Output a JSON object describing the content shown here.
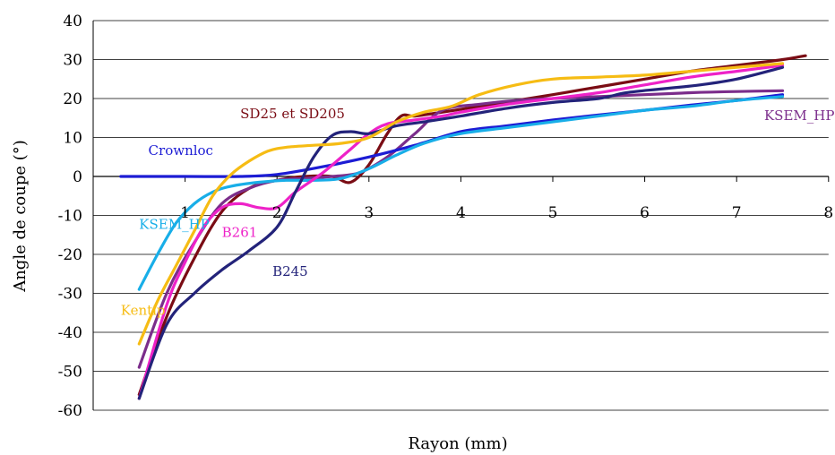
{
  "chart_data": {
    "type": "line",
    "xlabel": "Rayon (mm)",
    "ylabel": "Angle de coupe (°)",
    "xlim": [
      0,
      8
    ],
    "ylim": [
      -60,
      40
    ],
    "xticks": [
      1,
      2,
      3,
      4,
      5,
      6,
      7,
      8
    ],
    "yticks": [
      40,
      30,
      20,
      10,
      0,
      -10,
      -20,
      -30,
      -40,
      -50,
      -60
    ],
    "grid": "horizontal",
    "series": [
      {
        "name": "SD25 et SD205",
        "color": "#7a0c14",
        "points": [
          [
            0.5,
            -56
          ],
          [
            0.8,
            -36
          ],
          [
            1.1,
            -21
          ],
          [
            1.4,
            -9
          ],
          [
            1.7,
            -3
          ],
          [
            2.0,
            -1
          ],
          [
            2.3,
            0
          ],
          [
            2.6,
            0
          ],
          [
            2.8,
            -1.5
          ],
          [
            3.0,
            3
          ],
          [
            3.2,
            11
          ],
          [
            3.35,
            15.5
          ],
          [
            3.5,
            15.5
          ],
          [
            3.8,
            16.5
          ],
          [
            4.2,
            18
          ],
          [
            4.6,
            19.5
          ],
          [
            5.0,
            21
          ],
          [
            5.5,
            23
          ],
          [
            6.0,
            25
          ],
          [
            6.5,
            27
          ],
          [
            7.0,
            28.5
          ],
          [
            7.5,
            30
          ],
          [
            7.75,
            31
          ]
        ]
      },
      {
        "name": "KSEM_HPGM",
        "color": "#7b2d8b",
        "points": [
          [
            0.5,
            -49
          ],
          [
            0.8,
            -30
          ],
          [
            1.1,
            -17
          ],
          [
            1.4,
            -7
          ],
          [
            1.7,
            -3
          ],
          [
            2.0,
            -1
          ],
          [
            2.3,
            -0.5
          ],
          [
            2.6,
            0
          ],
          [
            2.9,
            1
          ],
          [
            3.2,
            5
          ],
          [
            3.5,
            11
          ],
          [
            3.8,
            17
          ],
          [
            4.2,
            18.5
          ],
          [
            4.6,
            19.5
          ],
          [
            5.0,
            20
          ],
          [
            5.5,
            20.5
          ],
          [
            6.0,
            21
          ],
          [
            6.5,
            21.5
          ],
          [
            7.0,
            21.8
          ],
          [
            7.5,
            22
          ]
        ]
      },
      {
        "name": "Crownloc",
        "color": "#1c1cd4",
        "points": [
          [
            0.3,
            0
          ],
          [
            1.0,
            0
          ],
          [
            1.6,
            0
          ],
          [
            2.0,
            0.5
          ],
          [
            2.5,
            2.5
          ],
          [
            3.0,
            5
          ],
          [
            3.5,
            8
          ],
          [
            4.0,
            11.5
          ],
          [
            4.5,
            13
          ],
          [
            5.0,
            14.5
          ],
          [
            5.5,
            15.8
          ],
          [
            6.0,
            17
          ],
          [
            6.5,
            18.3
          ],
          [
            7.0,
            19.5
          ],
          [
            7.5,
            21
          ]
        ]
      },
      {
        "name": "KSEM_HP",
        "color": "#18aee8",
        "points": [
          [
            0.5,
            -29
          ],
          [
            0.7,
            -20
          ],
          [
            0.9,
            -12
          ],
          [
            1.1,
            -7
          ],
          [
            1.3,
            -4
          ],
          [
            1.5,
            -2.5
          ],
          [
            1.8,
            -1.5
          ],
          [
            2.1,
            -1
          ],
          [
            2.4,
            -1
          ],
          [
            2.7,
            -0.5
          ],
          [
            3.0,
            2
          ],
          [
            3.3,
            5.5
          ],
          [
            3.6,
            8.5
          ],
          [
            4.0,
            11
          ],
          [
            4.5,
            12.5
          ],
          [
            5.0,
            14
          ],
          [
            5.5,
            15.5
          ],
          [
            6.0,
            17
          ],
          [
            6.5,
            18
          ],
          [
            7.0,
            19.5
          ],
          [
            7.5,
            20.5
          ]
        ]
      },
      {
        "name": "B261",
        "color": "#ee22c8",
        "points": [
          [
            0.5,
            -57
          ],
          [
            0.8,
            -33
          ],
          [
            1.0,
            -22
          ],
          [
            1.2,
            -13
          ],
          [
            1.4,
            -8
          ],
          [
            1.6,
            -7
          ],
          [
            1.8,
            -8
          ],
          [
            2.0,
            -8
          ],
          [
            2.2,
            -4
          ],
          [
            2.5,
            1
          ],
          [
            2.8,
            7
          ],
          [
            3.0,
            11
          ],
          [
            3.2,
            13.5
          ],
          [
            3.5,
            14.5
          ],
          [
            3.8,
            15.5
          ],
          [
            4.0,
            16.5
          ],
          [
            4.5,
            18.5
          ],
          [
            5.0,
            20
          ],
          [
            5.5,
            21.5
          ],
          [
            6.0,
            23.5
          ],
          [
            6.5,
            25.5
          ],
          [
            7.0,
            27
          ],
          [
            7.5,
            28.5
          ]
        ]
      },
      {
        "name": "B245",
        "color": "#23237a",
        "points": [
          [
            0.5,
            -57
          ],
          [
            0.8,
            -38
          ],
          [
            1.1,
            -30
          ],
          [
            1.4,
            -24
          ],
          [
            1.7,
            -19
          ],
          [
            2.0,
            -13
          ],
          [
            2.2,
            -4
          ],
          [
            2.4,
            5
          ],
          [
            2.6,
            10.5
          ],
          [
            2.8,
            11.5
          ],
          [
            3.0,
            11
          ],
          [
            3.3,
            13
          ],
          [
            3.6,
            14
          ],
          [
            4.0,
            15.5
          ],
          [
            4.5,
            17.5
          ],
          [
            5.0,
            19
          ],
          [
            5.5,
            20
          ],
          [
            5.8,
            21.5
          ],
          [
            6.2,
            22.5
          ],
          [
            6.6,
            23.5
          ],
          [
            7.0,
            25
          ],
          [
            7.5,
            28
          ]
        ]
      },
      {
        "name": "Kentip",
        "color": "#f6bc14",
        "points": [
          [
            0.5,
            -43
          ],
          [
            0.7,
            -32
          ],
          [
            0.9,
            -23
          ],
          [
            1.1,
            -14
          ],
          [
            1.3,
            -5
          ],
          [
            1.5,
            0.5
          ],
          [
            1.7,
            4
          ],
          [
            1.9,
            6.5
          ],
          [
            2.1,
            7.5
          ],
          [
            2.4,
            8
          ],
          [
            2.7,
            8.5
          ],
          [
            3.0,
            10
          ],
          [
            3.3,
            14
          ],
          [
            3.6,
            16.5
          ],
          [
            3.9,
            18
          ],
          [
            4.2,
            21
          ],
          [
            4.6,
            23.5
          ],
          [
            5.0,
            25
          ],
          [
            5.5,
            25.5
          ],
          [
            6.0,
            26
          ],
          [
            6.5,
            27
          ],
          [
            7.0,
            28
          ],
          [
            7.5,
            29
          ]
        ]
      }
    ],
    "annotations": [
      {
        "text": "SD25 et SD205",
        "series": "SD25 et SD205",
        "at": [
          1.6,
          15
        ]
      },
      {
        "text": "KSEM_HPGM",
        "series": "KSEM_HPGM",
        "at": [
          7.3,
          14.5
        ]
      },
      {
        "text": "Crownloc",
        "series": "Crownloc",
        "at": [
          0.6,
          5.5
        ]
      },
      {
        "text": "KSEM_HP",
        "series": "KSEM_HP",
        "at": [
          0.5,
          -13.5
        ]
      },
      {
        "text": "B261",
        "series": "B261",
        "at": [
          1.4,
          -15.5
        ]
      },
      {
        "text": "B245",
        "series": "B245",
        "at": [
          1.95,
          -25.5
        ]
      },
      {
        "text": "Kentip",
        "series": "Kentip",
        "at": [
          0.3,
          -35.5
        ]
      }
    ]
  }
}
